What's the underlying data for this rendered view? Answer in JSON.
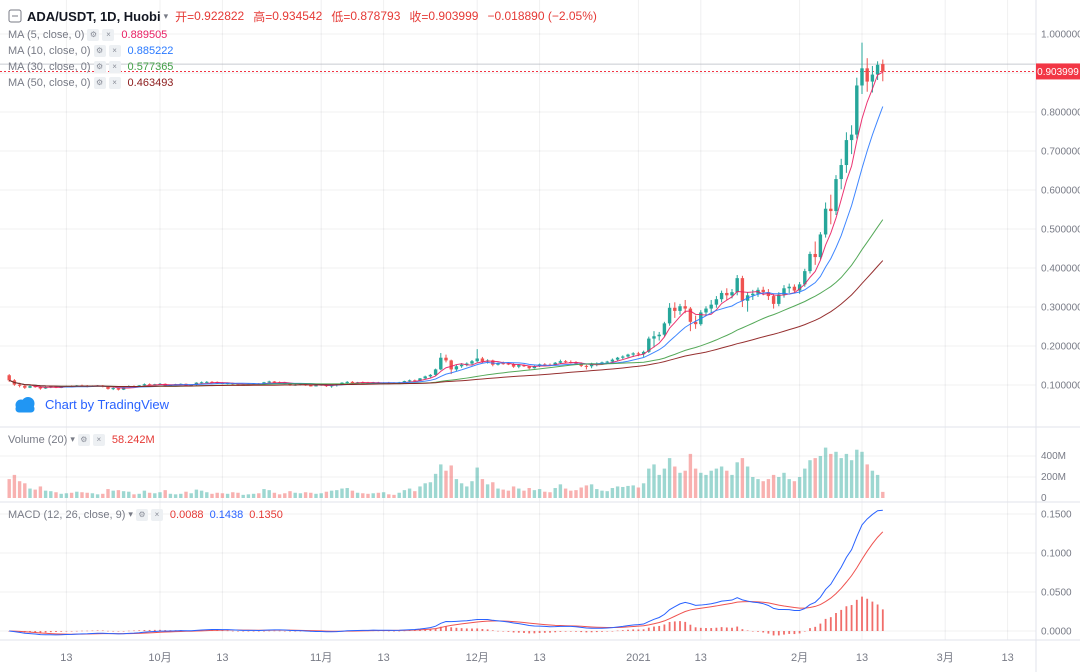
{
  "header": {
    "symbol_title": "ADA/USDT, 1D, Huobi",
    "open_label": "开=",
    "open_value": "0.922822",
    "high_label": "高=",
    "high_value": "0.934542",
    "low_label": "低=",
    "low_value": "0.878793",
    "close_label": "收=",
    "close_value": "0.903999",
    "change_value": "−0.018890 (−2.05%)",
    "ohlc_color": "#e53935"
  },
  "indicators": {
    "ma_rows": [
      {
        "label": "MA (5, close, 0)",
        "value": "0.889505",
        "color": "#e91e63",
        "period": 5
      },
      {
        "label": "MA (10, close, 0)",
        "value": "0.885222",
        "color": "#2979ff",
        "period": 10
      },
      {
        "label": "MA (30, close, 0)",
        "value": "0.577365",
        "color": "#43a047",
        "period": 30
      },
      {
        "label": "MA (50, close, 0)",
        "value": "0.463493",
        "color": "#8b1a1a",
        "period": 50
      }
    ],
    "volume": {
      "label": "Volume (20)",
      "value": "58.242M",
      "value_color": "#e53935"
    },
    "macd": {
      "label": "MACD (12, 26, close, 9)",
      "hist_value": "0.0088",
      "macd_value": "0.1438",
      "signal_value": "0.1350",
      "hist_color": "#e53935",
      "macd_color": "#2962ff",
      "signal_color": "#e53935"
    }
  },
  "watermark": {
    "text": "Chart by TradingView",
    "color": "#2962ff",
    "cloud_color": "#2196f3"
  },
  "icons": {
    "caret_down": "▾",
    "settings": "⚙",
    "close": "×"
  },
  "chart_data": {
    "type": "candlestick",
    "title": "ADA/USDT, 1D, Huobi",
    "interval": "1D",
    "colors": {
      "up": "#26a69a",
      "down": "#ef5350",
      "vol_up": "rgba(38,166,154,0.45)",
      "vol_down": "rgba(239,83,80,0.45)",
      "grid": "rgba(42,46,57,0.07)",
      "axis_text": "#787b86",
      "price_line": "#f23645",
      "open_line": "#b2b5be",
      "tag_bg": "#f23645",
      "divider": "#e0e3eb",
      "macd_hist": "#ef5350",
      "macd_line": "#2962ff",
      "macd_signal": "#ef5350"
    },
    "price_axis": {
      "grid": [
        1.0,
        0.9,
        0.8,
        0.7,
        0.6,
        0.5,
        0.4,
        0.3,
        0.2,
        0.1
      ],
      "labels": [
        {
          "text": "1.000000",
          "value": 1.0
        },
        {
          "text": "0.800000",
          "value": 0.8
        },
        {
          "text": "0.700000",
          "value": 0.7
        },
        {
          "text": "0.600000",
          "value": 0.6
        },
        {
          "text": "0.500000",
          "value": 0.5
        },
        {
          "text": "0.400000",
          "value": 0.4
        },
        {
          "text": "0.300000",
          "value": 0.3
        },
        {
          "text": "0.200000",
          "value": 0.2
        },
        {
          "text": "0.100000",
          "value": 0.1
        }
      ],
      "last_price": {
        "text": "0.903999",
        "value": 0.903999
      },
      "open_line_value": 0.922822
    },
    "volume_axis": {
      "grid": [
        400,
        200
      ],
      "labels": [
        {
          "text": "400M",
          "value": 400
        },
        {
          "text": "200M",
          "value": 200
        },
        {
          "text": "0",
          "value": 0
        }
      ]
    },
    "macd_axis": {
      "grid": [
        0.15,
        0.1,
        0.05,
        0.0
      ],
      "labels": [
        {
          "text": "0.1500",
          "value": 0.15
        },
        {
          "text": "0.1000",
          "value": 0.1
        },
        {
          "text": "0.0500",
          "value": 0.05
        },
        {
          "text": "0.0000",
          "value": 0.0
        }
      ]
    },
    "x_axis": {
      "labels": [
        {
          "text": "13",
          "i": 11
        },
        {
          "text": "10月",
          "i": 29
        },
        {
          "text": "13",
          "i": 41
        },
        {
          "text": "11月",
          "i": 60
        },
        {
          "text": "13",
          "i": 72
        },
        {
          "text": "12月",
          "i": 90
        },
        {
          "text": "13",
          "i": 102
        },
        {
          "text": "2021",
          "i": 121
        },
        {
          "text": "13",
          "i": 133
        },
        {
          "text": "2月",
          "i": 152
        },
        {
          "text": "13",
          "i": 164
        },
        {
          "text": "3月",
          "i": 180
        },
        {
          "text": "13",
          "i": 192
        }
      ]
    },
    "ohlcv": [
      [
        0.125,
        0.128,
        0.108,
        0.112,
        180
      ],
      [
        0.112,
        0.115,
        0.098,
        0.101,
        220
      ],
      [
        0.101,
        0.106,
        0.094,
        0.098,
        160
      ],
      [
        0.098,
        0.102,
        0.09,
        0.093,
        140
      ],
      [
        0.093,
        0.099,
        0.092,
        0.097,
        90
      ],
      [
        0.097,
        0.1,
        0.093,
        0.095,
        80
      ],
      [
        0.095,
        0.097,
        0.088,
        0.091,
        110
      ],
      [
        0.091,
        0.096,
        0.09,
        0.094,
        70
      ],
      [
        0.094,
        0.098,
        0.092,
        0.096,
        65
      ],
      [
        0.096,
        0.097,
        0.092,
        0.094,
        55
      ],
      [
        0.094,
        0.096,
        0.092,
        0.095,
        40
      ],
      [
        0.095,
        0.098,
        0.094,
        0.097,
        45
      ],
      [
        0.097,
        0.099,
        0.094,
        0.096,
        50
      ],
      [
        0.096,
        0.1,
        0.095,
        0.099,
        60
      ],
      [
        0.099,
        0.101,
        0.096,
        0.098,
        55
      ],
      [
        0.098,
        0.1,
        0.094,
        0.096,
        50
      ],
      [
        0.096,
        0.099,
        0.095,
        0.098,
        45
      ],
      [
        0.098,
        0.1,
        0.096,
        0.099,
        35
      ],
      [
        0.099,
        0.1,
        0.094,
        0.096,
        40
      ],
      [
        0.096,
        0.097,
        0.088,
        0.09,
        85
      ],
      [
        0.09,
        0.094,
        0.087,
        0.092,
        70
      ],
      [
        0.092,
        0.093,
        0.086,
        0.088,
        75
      ],
      [
        0.088,
        0.095,
        0.087,
        0.094,
        65
      ],
      [
        0.094,
        0.099,
        0.093,
        0.097,
        60
      ],
      [
        0.097,
        0.099,
        0.095,
        0.096,
        35
      ],
      [
        0.096,
        0.1,
        0.095,
        0.099,
        40
      ],
      [
        0.099,
        0.104,
        0.098,
        0.102,
        70
      ],
      [
        0.102,
        0.104,
        0.099,
        0.101,
        50
      ],
      [
        0.101,
        0.103,
        0.099,
        0.102,
        45
      ],
      [
        0.102,
        0.105,
        0.1,
        0.103,
        55
      ],
      [
        0.103,
        0.104,
        0.096,
        0.098,
        75
      ],
      [
        0.098,
        0.101,
        0.097,
        0.1,
        40
      ],
      [
        0.1,
        0.103,
        0.099,
        0.102,
        35
      ],
      [
        0.102,
        0.104,
        0.1,
        0.103,
        40
      ],
      [
        0.103,
        0.104,
        0.097,
        0.099,
        60
      ],
      [
        0.099,
        0.101,
        0.097,
        0.1,
        45
      ],
      [
        0.1,
        0.107,
        0.099,
        0.106,
        80
      ],
      [
        0.106,
        0.109,
        0.104,
        0.107,
        70
      ],
      [
        0.107,
        0.11,
        0.105,
        0.108,
        55
      ],
      [
        0.108,
        0.11,
        0.106,
        0.107,
        40
      ],
      [
        0.107,
        0.109,
        0.103,
        0.105,
        50
      ],
      [
        0.105,
        0.107,
        0.102,
        0.104,
        45
      ],
      [
        0.104,
        0.106,
        0.102,
        0.105,
        40
      ],
      [
        0.105,
        0.106,
        0.1,
        0.102,
        55
      ],
      [
        0.102,
        0.103,
        0.098,
        0.1,
        50
      ],
      [
        0.1,
        0.102,
        0.099,
        0.101,
        30
      ],
      [
        0.101,
        0.104,
        0.1,
        0.103,
        35
      ],
      [
        0.103,
        0.105,
        0.101,
        0.104,
        40
      ],
      [
        0.104,
        0.105,
        0.1,
        0.101,
        45
      ],
      [
        0.101,
        0.108,
        0.1,
        0.107,
        85
      ],
      [
        0.107,
        0.111,
        0.105,
        0.109,
        75
      ],
      [
        0.109,
        0.11,
        0.105,
        0.107,
        50
      ],
      [
        0.107,
        0.109,
        0.105,
        0.106,
        35
      ],
      [
        0.106,
        0.108,
        0.103,
        0.104,
        45
      ],
      [
        0.104,
        0.105,
        0.098,
        0.1,
        65
      ],
      [
        0.1,
        0.103,
        0.098,
        0.101,
        50
      ],
      [
        0.101,
        0.104,
        0.099,
        0.103,
        45
      ],
      [
        0.103,
        0.104,
        0.098,
        0.099,
        55
      ],
      [
        0.099,
        0.101,
        0.096,
        0.098,
        50
      ],
      [
        0.098,
        0.1,
        0.096,
        0.099,
        40
      ],
      [
        0.099,
        0.102,
        0.098,
        0.101,
        45
      ],
      [
        0.101,
        0.102,
        0.095,
        0.097,
        60
      ],
      [
        0.097,
        0.1,
        0.093,
        0.099,
        70
      ],
      [
        0.099,
        0.103,
        0.096,
        0.102,
        75
      ],
      [
        0.102,
        0.107,
        0.1,
        0.106,
        90
      ],
      [
        0.106,
        0.11,
        0.104,
        0.108,
        95
      ],
      [
        0.108,
        0.11,
        0.103,
        0.105,
        70
      ],
      [
        0.105,
        0.108,
        0.104,
        0.107,
        50
      ],
      [
        0.107,
        0.109,
        0.105,
        0.106,
        45
      ],
      [
        0.106,
        0.108,
        0.104,
        0.105,
        40
      ],
      [
        0.105,
        0.108,
        0.104,
        0.107,
        45
      ],
      [
        0.107,
        0.108,
        0.103,
        0.104,
        50
      ],
      [
        0.104,
        0.107,
        0.102,
        0.106,
        55
      ],
      [
        0.106,
        0.108,
        0.104,
        0.105,
        35
      ],
      [
        0.105,
        0.107,
        0.103,
        0.104,
        30
      ],
      [
        0.104,
        0.108,
        0.103,
        0.107,
        50
      ],
      [
        0.107,
        0.111,
        0.106,
        0.11,
        75
      ],
      [
        0.11,
        0.114,
        0.108,
        0.112,
        90
      ],
      [
        0.112,
        0.114,
        0.109,
        0.111,
        65
      ],
      [
        0.111,
        0.118,
        0.11,
        0.117,
        110
      ],
      [
        0.117,
        0.124,
        0.115,
        0.122,
        140
      ],
      [
        0.122,
        0.128,
        0.119,
        0.126,
        150
      ],
      [
        0.126,
        0.142,
        0.124,
        0.14,
        230
      ],
      [
        0.14,
        0.182,
        0.138,
        0.17,
        320
      ],
      [
        0.17,
        0.178,
        0.158,
        0.163,
        260
      ],
      [
        0.163,
        0.165,
        0.128,
        0.14,
        310
      ],
      [
        0.14,
        0.152,
        0.136,
        0.148,
        180
      ],
      [
        0.148,
        0.156,
        0.144,
        0.152,
        140
      ],
      [
        0.152,
        0.158,
        0.148,
        0.155,
        110
      ],
      [
        0.155,
        0.164,
        0.15,
        0.161,
        160
      ],
      [
        0.161,
        0.192,
        0.158,
        0.168,
        290
      ],
      [
        0.168,
        0.172,
        0.156,
        0.16,
        180
      ],
      [
        0.16,
        0.166,
        0.155,
        0.163,
        130
      ],
      [
        0.163,
        0.165,
        0.148,
        0.152,
        150
      ],
      [
        0.152,
        0.158,
        0.15,
        0.156,
        90
      ],
      [
        0.156,
        0.16,
        0.152,
        0.155,
        80
      ],
      [
        0.155,
        0.158,
        0.151,
        0.154,
        70
      ],
      [
        0.154,
        0.156,
        0.144,
        0.147,
        110
      ],
      [
        0.147,
        0.153,
        0.143,
        0.151,
        90
      ],
      [
        0.151,
        0.153,
        0.146,
        0.148,
        70
      ],
      [
        0.148,
        0.15,
        0.14,
        0.143,
        95
      ],
      [
        0.143,
        0.15,
        0.142,
        0.148,
        75
      ],
      [
        0.148,
        0.155,
        0.146,
        0.153,
        85
      ],
      [
        0.153,
        0.156,
        0.149,
        0.152,
        60
      ],
      [
        0.152,
        0.155,
        0.149,
        0.151,
        55
      ],
      [
        0.151,
        0.159,
        0.15,
        0.157,
        95
      ],
      [
        0.157,
        0.165,
        0.154,
        0.161,
        130
      ],
      [
        0.161,
        0.164,
        0.156,
        0.159,
        90
      ],
      [
        0.159,
        0.163,
        0.155,
        0.158,
        70
      ],
      [
        0.158,
        0.161,
        0.152,
        0.155,
        75
      ],
      [
        0.155,
        0.158,
        0.146,
        0.149,
        100
      ],
      [
        0.149,
        0.152,
        0.14,
        0.148,
        120
      ],
      [
        0.148,
        0.157,
        0.143,
        0.153,
        130
      ],
      [
        0.153,
        0.158,
        0.148,
        0.155,
        85
      ],
      [
        0.155,
        0.16,
        0.152,
        0.158,
        70
      ],
      [
        0.158,
        0.162,
        0.155,
        0.16,
        65
      ],
      [
        0.16,
        0.168,
        0.157,
        0.165,
        95
      ],
      [
        0.165,
        0.172,
        0.162,
        0.17,
        110
      ],
      [
        0.17,
        0.176,
        0.166,
        0.173,
        105
      ],
      [
        0.173,
        0.18,
        0.17,
        0.178,
        115
      ],
      [
        0.178,
        0.184,
        0.172,
        0.181,
        120
      ],
      [
        0.181,
        0.185,
        0.174,
        0.179,
        100
      ],
      [
        0.179,
        0.188,
        0.172,
        0.185,
        140
      ],
      [
        0.185,
        0.224,
        0.182,
        0.219,
        280
      ],
      [
        0.219,
        0.238,
        0.196,
        0.225,
        320
      ],
      [
        0.225,
        0.236,
        0.214,
        0.229,
        220
      ],
      [
        0.229,
        0.262,
        0.224,
        0.258,
        280
      ],
      [
        0.258,
        0.31,
        0.252,
        0.298,
        380
      ],
      [
        0.298,
        0.312,
        0.272,
        0.29,
        300
      ],
      [
        0.29,
        0.308,
        0.28,
        0.302,
        240
      ],
      [
        0.302,
        0.318,
        0.284,
        0.296,
        260
      ],
      [
        0.296,
        0.3,
        0.238,
        0.262,
        420
      ],
      [
        0.262,
        0.278,
        0.244,
        0.256,
        280
      ],
      [
        0.256,
        0.292,
        0.252,
        0.286,
        240
      ],
      [
        0.286,
        0.302,
        0.278,
        0.296,
        220
      ],
      [
        0.296,
        0.318,
        0.284,
        0.306,
        260
      ],
      [
        0.306,
        0.328,
        0.298,
        0.32,
        280
      ],
      [
        0.32,
        0.342,
        0.312,
        0.336,
        300
      ],
      [
        0.336,
        0.348,
        0.318,
        0.33,
        260
      ],
      [
        0.33,
        0.346,
        0.322,
        0.338,
        220
      ],
      [
        0.338,
        0.382,
        0.33,
        0.374,
        340
      ],
      [
        0.374,
        0.38,
        0.3,
        0.316,
        380
      ],
      [
        0.316,
        0.338,
        0.288,
        0.33,
        300
      ],
      [
        0.33,
        0.344,
        0.318,
        0.334,
        200
      ],
      [
        0.334,
        0.35,
        0.326,
        0.344,
        180
      ],
      [
        0.344,
        0.352,
        0.33,
        0.338,
        160
      ],
      [
        0.338,
        0.346,
        0.318,
        0.328,
        180
      ],
      [
        0.328,
        0.334,
        0.296,
        0.308,
        220
      ],
      [
        0.308,
        0.338,
        0.302,
        0.332,
        200
      ],
      [
        0.332,
        0.356,
        0.324,
        0.348,
        240
      ],
      [
        0.348,
        0.36,
        0.336,
        0.352,
        180
      ],
      [
        0.352,
        0.358,
        0.336,
        0.342,
        160
      ],
      [
        0.342,
        0.364,
        0.334,
        0.358,
        200
      ],
      [
        0.358,
        0.398,
        0.352,
        0.392,
        280
      ],
      [
        0.392,
        0.442,
        0.386,
        0.436,
        360
      ],
      [
        0.436,
        0.468,
        0.408,
        0.428,
        380
      ],
      [
        0.428,
        0.492,
        0.422,
        0.486,
        400
      ],
      [
        0.486,
        0.568,
        0.478,
        0.552,
        480
      ],
      [
        0.552,
        0.588,
        0.512,
        0.546,
        420
      ],
      [
        0.546,
        0.638,
        0.536,
        0.628,
        440
      ],
      [
        0.628,
        0.68,
        0.602,
        0.664,
        380
      ],
      [
        0.664,
        0.748,
        0.644,
        0.728,
        420
      ],
      [
        0.728,
        0.766,
        0.692,
        0.742,
        360
      ],
      [
        0.742,
        0.888,
        0.732,
        0.868,
        460
      ],
      [
        0.868,
        0.978,
        0.846,
        0.912,
        440
      ],
      [
        0.912,
        0.938,
        0.852,
        0.878,
        320
      ],
      [
        0.878,
        0.918,
        0.85,
        0.896,
        260
      ],
      [
        0.896,
        0.93,
        0.882,
        0.921,
        220
      ],
      [
        0.922822,
        0.934542,
        0.878793,
        0.903999,
        58.242
      ]
    ]
  }
}
